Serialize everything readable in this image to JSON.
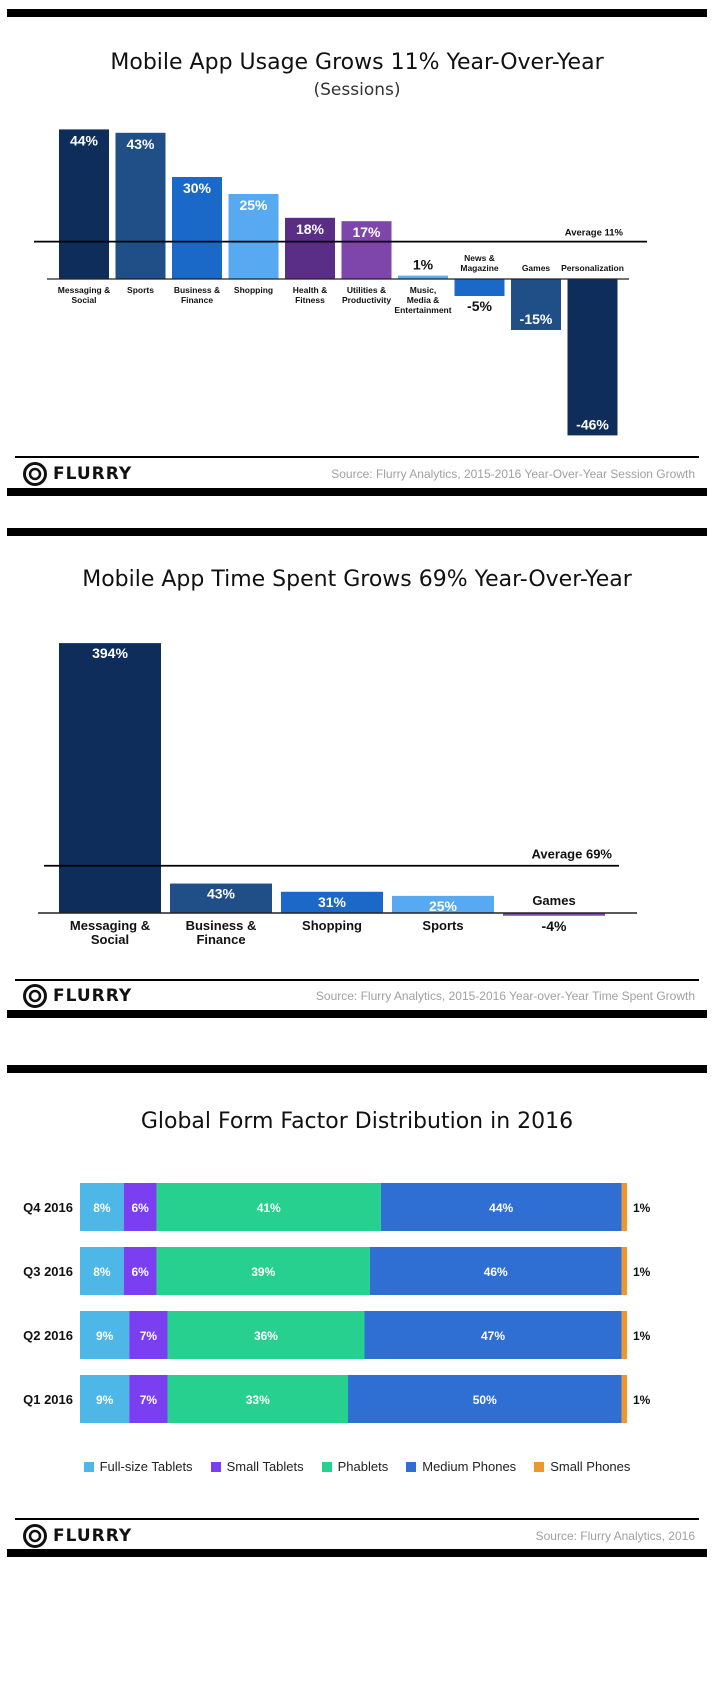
{
  "brand": {
    "name": "FLURRY",
    "logo": "flurry-logo-icon"
  },
  "chart_data": [
    {
      "type": "bar",
      "title": "Mobile App Usage Grows 11% Year-Over-Year",
      "subtitle": "(Sessions)",
      "categories": [
        "Messaging & Social",
        "Sports",
        "Business & Finance",
        "Shopping",
        "Health & Fitness",
        "Utilities & Productivity",
        "Music, Media & Entertainment",
        "News & Magazine",
        "Games",
        "Personalization"
      ],
      "values": [
        44,
        43,
        30,
        25,
        18,
        17,
        1,
        -5,
        -15,
        -46
      ],
      "value_labels": [
        "44%",
        "43%",
        "30%",
        "25%",
        "18%",
        "17%",
        "1%",
        "-5%",
        "-15%",
        "-46%"
      ],
      "colors": [
        "#0f2d5b",
        "#1f4f86",
        "#1a68c8",
        "#57a9f2",
        "#5a2d86",
        "#7e45aa",
        "#5cb0f0",
        "#1a68c8",
        "#1f4f86",
        "#0f2d5b"
      ],
      "average": {
        "value": 11,
        "label": "Average 11%"
      },
      "ylim": [
        -46,
        44
      ],
      "source": "Source: Flurry Analytics, 2015-2016 Year-Over-Year Session Growth"
    },
    {
      "type": "bar",
      "title": "Mobile App Time Spent Grows 69% Year-Over-Year",
      "categories": [
        "Messaging & Social",
        "Business & Finance",
        "Shopping",
        "Sports",
        "Games"
      ],
      "values": [
        394,
        43,
        31,
        25,
        -4
      ],
      "value_labels": [
        "394%",
        "43%",
        "31%",
        "25%",
        "-4%"
      ],
      "colors": [
        "#0f2d5b",
        "#1f4f86",
        "#1a68c8",
        "#57a9f2",
        "#7e45aa"
      ],
      "average": {
        "value": 69,
        "label": "Average 69%"
      },
      "source": "Source: Flurry Analytics, 2015-2016 Year-over-Year Time Spent Growth"
    },
    {
      "type": "bar",
      "stacked": true,
      "orientation": "horizontal",
      "title": "Global Form Factor Distribution in 2016",
      "categories": [
        "Q4 2016",
        "Q3 2016",
        "Q2 2016",
        "Q1 2016"
      ],
      "series": [
        {
          "name": "Full-size Tablets",
          "color": "#4db8e8",
          "values": [
            8,
            8,
            9,
            9
          ]
        },
        {
          "name": "Small Tablets",
          "color": "#7a3ff0",
          "values": [
            6,
            6,
            7,
            7
          ]
        },
        {
          "name": "Phablets",
          "color": "#27d08f",
          "values": [
            41,
            39,
            36,
            33
          ]
        },
        {
          "name": "Medium Phones",
          "color": "#2f6fd4",
          "values": [
            44,
            46,
            47,
            50
          ]
        },
        {
          "name": "Small Phones",
          "color": "#f0962e",
          "values": [
            1,
            1,
            1,
            1
          ]
        }
      ],
      "legend": "bottom",
      "source": "Source: Flurry Analytics, 2016"
    }
  ]
}
